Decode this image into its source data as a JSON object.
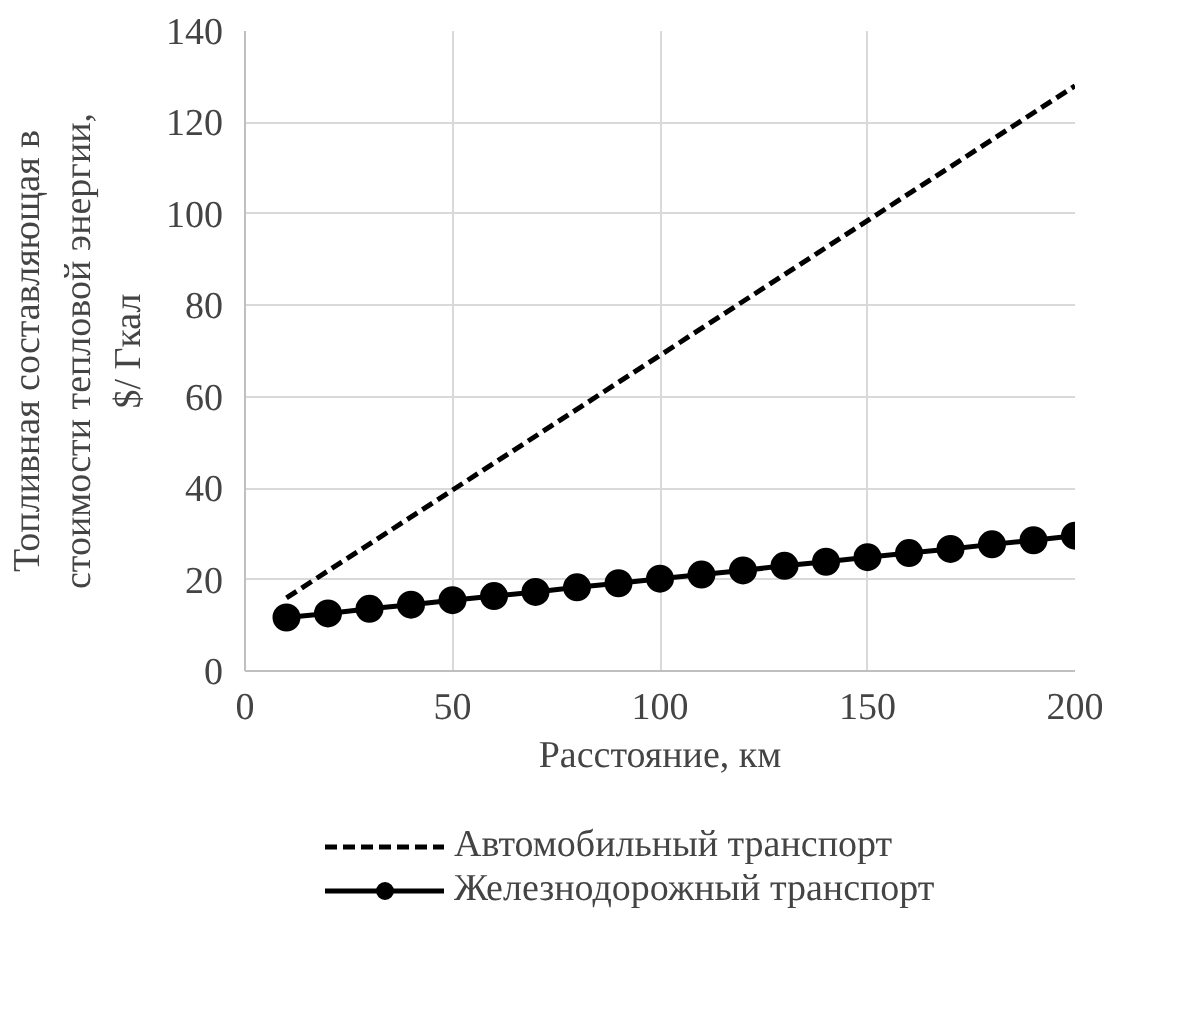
{
  "chart_data": {
    "type": "line",
    "xlabel": "Расстояние, км",
    "ylabel": "Топливная составляющая в\nстоимости тепловой энергии,\n$/ Гкал",
    "xlim": [
      0,
      200
    ],
    "xticks": [
      0,
      50,
      100,
      150,
      200
    ],
    "ylim": [
      0,
      140
    ],
    "yticks": [
      0,
      20,
      40,
      60,
      80,
      100,
      120,
      140
    ],
    "grid": true,
    "legend": "bottom",
    "series": [
      {
        "name": "Автомобильный транспорт",
        "color": "#000000",
        "line_style": "dashed",
        "marker": "none",
        "x": [
          10,
          200
        ],
        "values": [
          16,
          128
        ]
      },
      {
        "name": "Железнодорожный транспорт",
        "color": "#000000",
        "line_style": "solid",
        "marker": "circle",
        "x": [
          10,
          20,
          30,
          40,
          50,
          60,
          70,
          80,
          90,
          100,
          110,
          120,
          130,
          140,
          150,
          160,
          170,
          180,
          190,
          200
        ],
        "values": [
          11.7,
          12.6,
          13.6,
          14.5,
          15.5,
          16.4,
          17.3,
          18.3,
          19.2,
          20.2,
          21.1,
          22.0,
          23.0,
          23.9,
          24.9,
          25.8,
          26.7,
          27.7,
          28.6,
          29.6
        ]
      }
    ]
  }
}
